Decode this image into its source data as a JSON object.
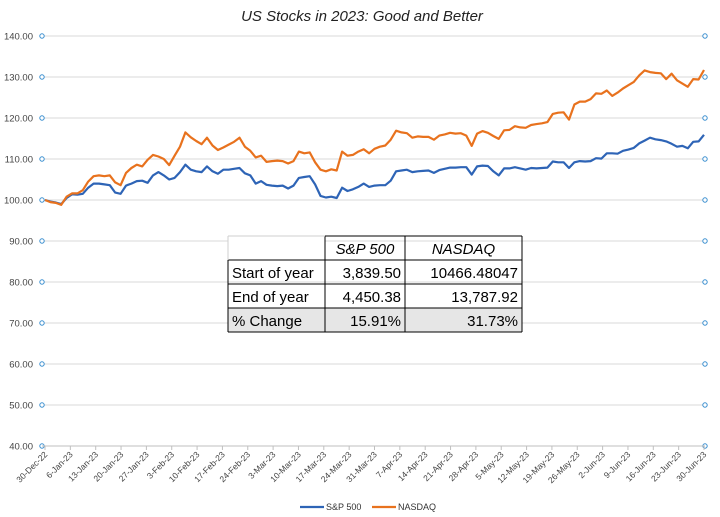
{
  "chart_data": {
    "type": "line",
    "title": "US Stocks in 2023: Good and Better",
    "xlabel": "",
    "ylabel": "",
    "ylim": [
      40,
      140
    ],
    "yticks": [
      "40.00",
      "50.00",
      "60.00",
      "70.00",
      "80.00",
      "90.00",
      "100.00",
      "110.00",
      "120.00",
      "130.00",
      "140.00"
    ],
    "xticks": [
      "30-Dec-22",
      "6-Jan-23",
      "13-Jan-23",
      "20-Jan-23",
      "27-Jan-23",
      "3-Feb-23",
      "10-Feb-23",
      "17-Feb-23",
      "24-Feb-23",
      "3-Mar-23",
      "10-Mar-23",
      "17-Mar-23",
      "24-Mar-23",
      "31-Mar-23",
      "7-Apr-23",
      "14-Apr-23",
      "21-Apr-23",
      "28-Apr-23",
      "5-May-23",
      "12-May-23",
      "19-May-23",
      "26-May-23",
      "2-Jun-23",
      "9-Jun-23",
      "16-Jun-23",
      "23-Jun-23",
      "30-Jun-23"
    ],
    "grid": "horizontal",
    "legend_position": "bottom",
    "series": [
      {
        "name": "S&P 500",
        "color": "#2e64b6",
        "values": [
          100,
          99.6,
          99.4,
          99.0,
          100.5,
          101.4,
          101.3,
          101.5,
          103,
          104,
          104,
          103.8,
          103.6,
          101.8,
          101.5,
          103.5,
          104,
          104.6,
          104.7,
          104.2,
          106,
          106.8,
          106,
          105,
          105.4,
          106.8,
          108.6,
          107.4,
          107,
          106.8,
          108.2,
          107,
          106.4,
          107.4,
          107.4,
          107.6,
          107.8,
          106.5,
          106,
          104,
          104.6,
          103.7,
          103.5,
          103.4,
          103.5,
          102.8,
          103.5,
          105.4,
          105.6,
          105.8,
          103.8,
          101,
          100.6,
          100.8,
          100.5,
          103,
          102.2,
          102.6,
          103.2,
          104,
          103.2,
          103.5,
          103.6,
          103.6,
          104.7,
          107,
          107.2,
          107.4,
          106.8,
          107,
          107.1,
          107.2,
          106.6,
          107.3,
          107.6,
          107.9,
          107.9,
          108,
          108,
          106.2,
          108.2,
          108.4,
          108.3,
          107,
          106,
          107.7,
          107.7,
          108,
          107.7,
          107.4,
          107.8,
          107.7,
          107.8,
          107.9,
          109.4,
          109.2,
          109.2,
          107.8,
          109.2,
          109.5,
          109.4,
          109.5,
          110.2,
          110.1,
          111.4,
          111.4,
          111.3,
          112,
          112.3,
          112.7,
          113.8,
          114.5,
          115.2,
          114.8,
          114.6,
          114.3,
          113.7,
          113,
          113.2,
          112.6,
          114.2,
          114.3,
          115.9
        ]
      },
      {
        "name": "NASDAQ",
        "color": "#e8721e",
        "values": [
          100,
          99.5,
          99.3,
          98.8,
          100.8,
          101.6,
          101.6,
          102.4,
          104.5,
          105.8,
          106,
          105.8,
          106,
          104.3,
          103.6,
          106.6,
          107.8,
          108.6,
          108.2,
          109.8,
          111,
          110.6,
          110,
          108.5,
          110.8,
          113,
          116.5,
          115.3,
          114.4,
          113.6,
          115.2,
          113.3,
          112.2,
          112.8,
          113.5,
          114.2,
          115.2,
          113,
          112,
          110.4,
          110.8,
          109.3,
          109.5,
          109.6,
          109.5,
          108.9,
          109.5,
          111.8,
          111.4,
          111.6,
          109.2,
          107.4,
          107,
          107.5,
          107.2,
          111.8,
          110.8,
          111,
          111.8,
          112.4,
          111.4,
          112.5,
          113,
          113.3,
          114.7,
          116.9,
          116.5,
          116.3,
          115.2,
          115.5,
          115.4,
          115.4,
          114.7,
          115.7,
          116,
          116.4,
          116.2,
          116.3,
          115.7,
          113.2,
          116.2,
          116.8,
          116.4,
          115.6,
          114.9,
          117,
          117.1,
          118,
          117.7,
          117.6,
          118.3,
          118.5,
          118.7,
          119,
          121,
          121.3,
          121.4,
          119.6,
          123.3,
          124,
          124,
          124.6,
          126,
          125.9,
          126.7,
          125.4,
          126.2,
          127.2,
          128,
          128.8,
          130.4,
          131.6,
          131.2,
          131,
          130.9,
          129.5,
          130.8,
          129.2,
          128.4,
          127.6,
          129.5,
          129.4,
          131.7
        ]
      }
    ],
    "table": {
      "headers": [
        "",
        "S&P 500",
        "NASDAQ"
      ],
      "rows": [
        [
          "Start of year",
          "3,839.50",
          "10466.48047"
        ],
        [
          "End of year",
          "4,450.38",
          "13,787.92"
        ],
        [
          "% Change",
          "15.91%",
          "31.73%"
        ]
      ]
    }
  }
}
